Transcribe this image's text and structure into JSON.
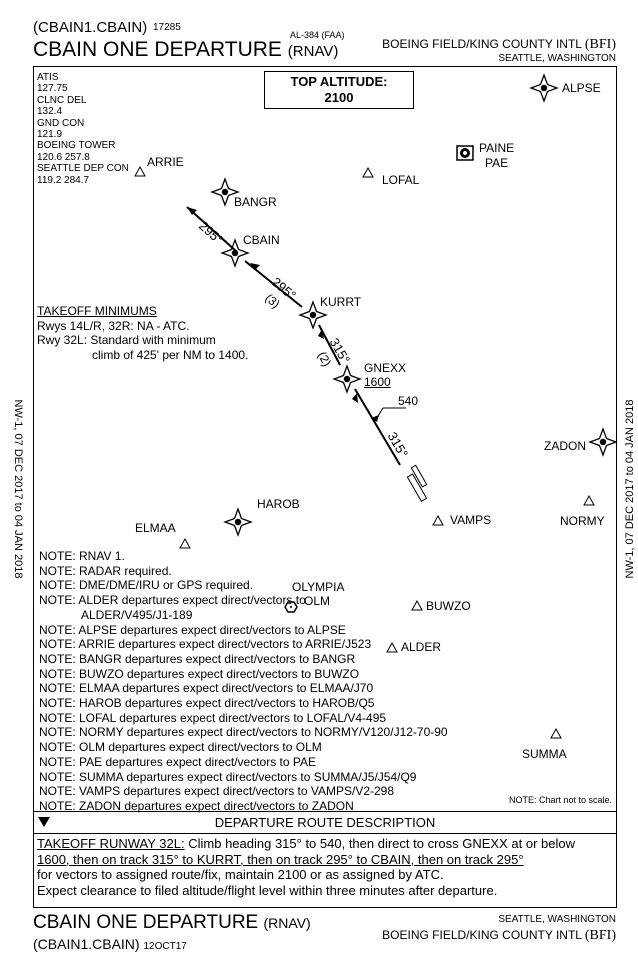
{
  "header": {
    "code": "(CBAIN1.CBAIN)",
    "number": "17285",
    "faa": "AL-384 (FAA)",
    "title": "CBAIN ONE DEPARTURE",
    "rnav": "(RNAV)",
    "airport": "BOEING FIELD/KING COUNTY INTL",
    "airport_code": "(BFI)",
    "city": "SEATTLE, WASHINGTON"
  },
  "top_altitude": {
    "label": "TOP ALTITUDE:",
    "value": "2100"
  },
  "frequencies": [
    "ATIS",
    "127.75",
    "CLNC DEL",
    "132.4",
    "GND CON",
    "121.9",
    "BOEING TOWER",
    "120.6  257.8",
    "SEATTLE DEP CON",
    "119.2  284.7"
  ],
  "takeoff_minimums": {
    "title": "TAKEOFF MINIMUMS",
    "line1": "Rwys 14L/R, 32R: NA - ATC.",
    "line2": "Rwy 32L: Standard with minimum",
    "line3": "climb of 425' per NM to 1400."
  },
  "fixes": {
    "alpse": "ALPSE",
    "paine": "PAINE",
    "pae": "PAE",
    "arrie": "ARRIE",
    "lofal": "LOFAL",
    "bangr": "BANGR",
    "cbain": "CBAIN",
    "kurrt": "KURRT",
    "gnexx": "GNEXX",
    "gnexx_alt": "1600",
    "zadon": "ZADON",
    "harob": "HAROB",
    "elmaa": "ELMAA",
    "vamps": "VAMPS",
    "normy": "NORMY",
    "olympia": "OLYMPIA",
    "olm": "OLM",
    "buwzo": "BUWZO",
    "alder": "ALDER",
    "summa": "SUMMA"
  },
  "route_labels": {
    "leg1": "295°",
    "leg2": "295°",
    "leg2_dist": "(3)",
    "leg3": "315°",
    "leg3_dist": "(2)",
    "alt540": "540",
    "leg4": "315°"
  },
  "notes": [
    "NOTE: RNAV 1.",
    "NOTE: RADAR required.",
    "NOTE: DME/DME/IRU or GPS required.",
    "NOTE: ALDER departures expect direct/vectors to",
    "ALDER/V495/J1-189",
    "NOTE: ALPSE departures expect direct/vectors to ALPSE",
    "NOTE: ARRIE departures expect direct/vectors to ARRIE/J523",
    "NOTE: BANGR departures expect direct/vectors to BANGR",
    "NOTE: BUWZO departures expect direct/vectors to BUWZO",
    "NOTE: ELMAA departures expect direct/vectors to ELMAA/J70",
    "NOTE: HAROB departures expect direct/vectors to HAROB/Q5",
    "NOTE: LOFAL departures expect direct/vectors to LOFAL/V4-495",
    "NOTE: NORMY departures expect direct/vectors to NORMY/V120/J12-70-90",
    "NOTE: OLM departures expect direct/vectors to OLM",
    "NOTE: PAE departures expect direct/vectors to PAE",
    "NOTE: SUMMA departures expect direct/vectors to SUMMA/J5/J54/Q9",
    "NOTE: VAMPS departures expect direct/vectors to VAMPS/V2-298",
    "NOTE: ZADON departures expect direct/vectors to ZADON"
  ],
  "not_to_scale": "NOTE:  Chart not to scale.",
  "side_text": "NW-1,  07 DEC 2017  to  04 JAN 2018",
  "description": {
    "title": "DEPARTURE ROUTE DESCRIPTION",
    "runway": "TAKEOFF RUNWAY 32L:",
    "line1": "Climb heading 315° to 540, then direct to cross GNEXX at or below",
    "line2": "1600, then on track 315° to KURRT, then on track 295° to CBAIN, then on track 295°",
    "line3": "for vectors to assigned route/fix, maintain 2100 or as assigned by ATC.",
    "line4": "Expect clearance to filed altitude/flight level within three minutes after departure."
  },
  "footer": {
    "title": "CBAIN ONE DEPARTURE",
    "rnav": "(RNAV)",
    "code": "(CBAIN1.CBAIN)",
    "date": "12OCT17",
    "city": "SEATTLE, WASHINGTON",
    "airport": "BOEING FIELD/KING COUNTY INTL",
    "airport_code": "(BFI)"
  }
}
